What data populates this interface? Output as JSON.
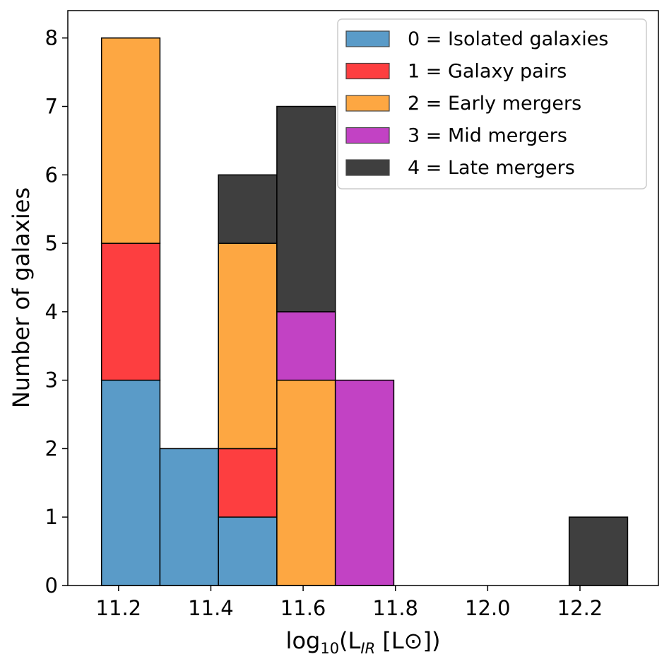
{
  "chart_data": {
    "type": "histogram-stacked",
    "xlabel": {
      "prefix": "log",
      "sub1": "10",
      "mid": "(L",
      "sub2": "IR",
      "suffix": " [L⊙])"
    },
    "ylabel": "Number of galaxies",
    "xlim": [
      11.09,
      12.37
    ],
    "ylim": [
      0,
      8.4
    ],
    "xticks": [
      11.2,
      11.4,
      11.6,
      11.8,
      12.0,
      12.2
    ],
    "xtick_labels": [
      "11.2",
      "11.4",
      "11.6",
      "11.8",
      "12.0",
      "12.2"
    ],
    "yticks": [
      0,
      1,
      2,
      3,
      4,
      5,
      6,
      7,
      8
    ],
    "ytick_labels": [
      "0",
      "1",
      "2",
      "3",
      "4",
      "5",
      "6",
      "7",
      "8"
    ],
    "bin_edges": [
      11.163,
      11.2897,
      11.4164,
      11.5431,
      11.6698,
      11.7965,
      11.9232,
      12.0499,
      12.1766,
      12.3033
    ],
    "series": [
      {
        "name": "0 = Isolated galaxies",
        "color": "#5a9bc8",
        "values": [
          3,
          2,
          1,
          0,
          0,
          0,
          0,
          0,
          0
        ]
      },
      {
        "name": "1 = Galaxy pairs",
        "color": "#fd3e40",
        "values": [
          2,
          0,
          1,
          0,
          0,
          0,
          0,
          0,
          0
        ]
      },
      {
        "name": "2 = Early mergers",
        "color": "#fda742",
        "values": [
          3,
          0,
          3,
          3,
          0,
          0,
          0,
          0,
          0
        ]
      },
      {
        "name": "3 = Mid mergers",
        "color": "#c242c4",
        "values": [
          0,
          0,
          0,
          1,
          3,
          0,
          0,
          0,
          0
        ]
      },
      {
        "name": "4 = Late mergers",
        "color": "#3f3f3f",
        "values": [
          0,
          0,
          1,
          3,
          0,
          0,
          0,
          0,
          1
        ]
      }
    ],
    "legend_position": "top-right"
  }
}
